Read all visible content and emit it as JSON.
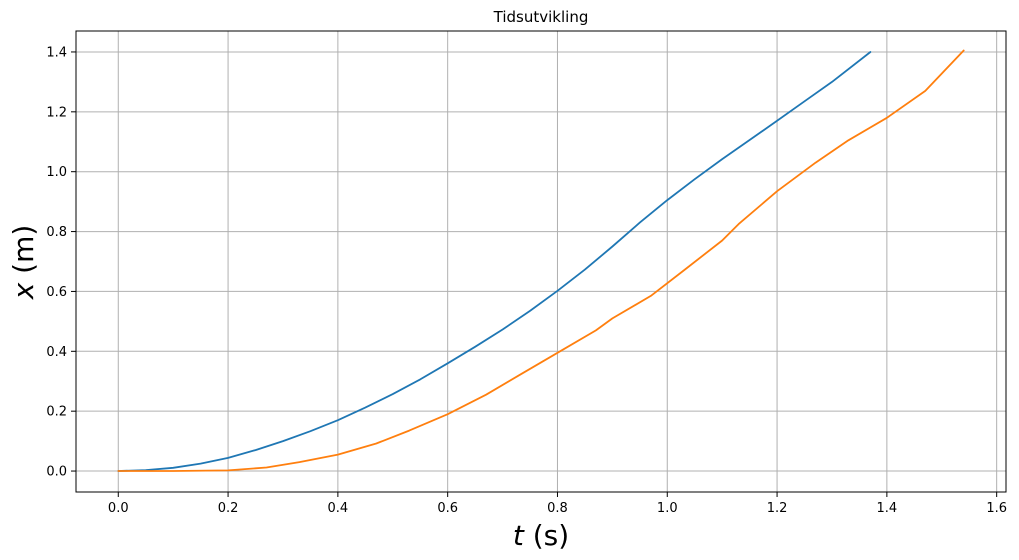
{
  "chart_data": {
    "type": "line",
    "title": "Tidsutvikling",
    "xlabel": {
      "var": "t",
      "unit": " (s)"
    },
    "ylabel": {
      "var": "x",
      "unit": " (m)"
    },
    "xlim": [
      -0.077,
      1.617
    ],
    "ylim": [
      -0.07,
      1.47
    ],
    "xticks": [
      0.0,
      0.2,
      0.4,
      0.6,
      0.8,
      1.0,
      1.2,
      1.4,
      1.6
    ],
    "xtick_labels": [
      "0.0",
      "0.2",
      "0.4",
      "0.6",
      "0.8",
      "1.0",
      "1.2",
      "1.4",
      "1.6"
    ],
    "yticks": [
      0.0,
      0.2,
      0.4,
      0.6,
      0.8,
      1.0,
      1.2,
      1.4
    ],
    "ytick_labels": [
      "0.0",
      "0.2",
      "0.4",
      "0.6",
      "0.8",
      "1.0",
      "1.2",
      "1.4"
    ],
    "grid": true,
    "series": [
      {
        "color": "#1f77b4",
        "x": [
          0.0,
          0.05,
          0.1,
          0.15,
          0.2,
          0.25,
          0.3,
          0.35,
          0.4,
          0.45,
          0.5,
          0.55,
          0.6,
          0.65,
          0.7,
          0.75,
          0.8,
          0.85,
          0.9,
          0.95,
          1.0,
          1.05,
          1.1,
          1.15,
          1.2,
          1.25,
          1.3,
          1.37
        ],
        "y": [
          0.0,
          0.003,
          0.011,
          0.025,
          0.044,
          0.07,
          0.1,
          0.133,
          0.17,
          0.212,
          0.257,
          0.306,
          0.36,
          0.415,
          0.473,
          0.535,
          0.602,
          0.673,
          0.75,
          0.83,
          0.905,
          0.975,
          1.042,
          1.106,
          1.17,
          1.235,
          1.3,
          1.4
        ]
      },
      {
        "color": "#ff7f0e",
        "x": [
          0.0,
          0.1,
          0.2,
          0.27,
          0.33,
          0.4,
          0.47,
          0.53,
          0.6,
          0.67,
          0.73,
          0.8,
          0.87,
          0.9,
          0.97,
          1.03,
          1.1,
          1.13,
          1.2,
          1.27,
          1.33,
          1.4,
          1.47,
          1.54
        ],
        "y": [
          0.0,
          0.0,
          0.002,
          0.012,
          0.03,
          0.055,
          0.092,
          0.135,
          0.19,
          0.255,
          0.32,
          0.395,
          0.47,
          0.51,
          0.585,
          0.67,
          0.77,
          0.825,
          0.935,
          1.03,
          1.105,
          1.18,
          1.27,
          1.405
        ]
      }
    ]
  }
}
